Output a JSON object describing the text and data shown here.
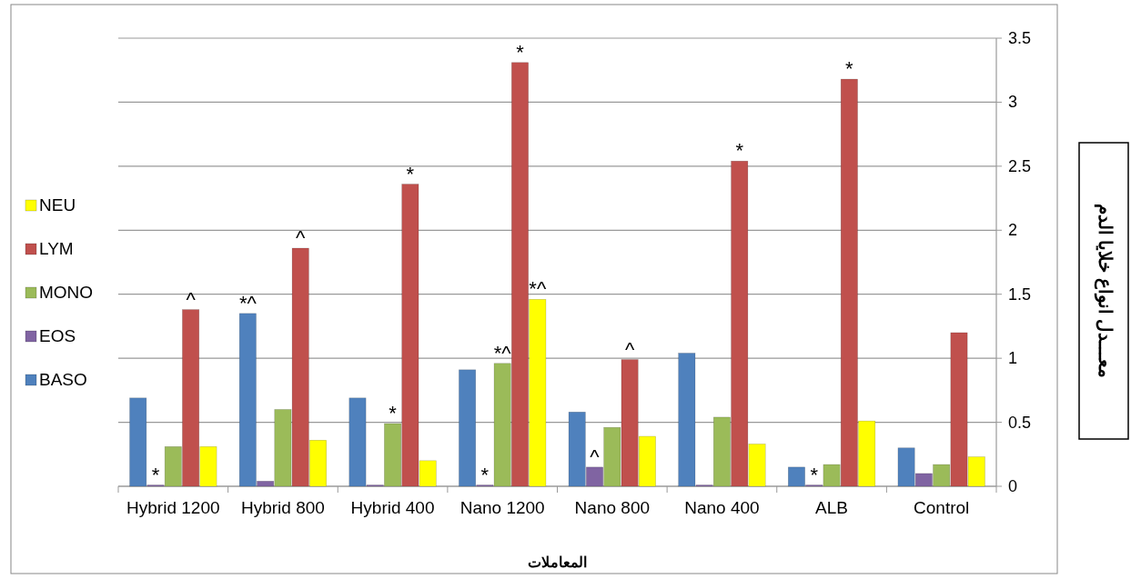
{
  "chart_data": {
    "type": "bar",
    "xlabel": "المعاملات",
    "ylabel": "معـــدل انواع خلايا الدم",
    "categories": [
      "Hybrid 1200",
      "Hybrid 800",
      "Hybrid 400",
      "Nano 1200",
      "Nano 800",
      "Nano 400",
      "ALB",
      "Control"
    ],
    "series": [
      {
        "name": "BASO",
        "color": "#4f81bd",
        "values": [
          0.69,
          1.35,
          0.69,
          0.91,
          0.58,
          1.04,
          0.15,
          0.3
        ],
        "value_labels": [
          null,
          "*^",
          null,
          null,
          null,
          null,
          null,
          null
        ]
      },
      {
        "name": "EOS",
        "color": "#8064a2",
        "values": [
          0.01,
          0.04,
          0.01,
          0.01,
          0.15,
          0.01,
          0.01,
          0.1
        ],
        "value_labels": [
          "*",
          null,
          null,
          "*",
          "^",
          null,
          "*",
          null
        ]
      },
      {
        "name": "MONO",
        "color": "#9bbb59",
        "values": [
          0.31,
          0.6,
          0.49,
          0.96,
          0.46,
          0.54,
          0.17,
          0.17
        ],
        "value_labels": [
          null,
          null,
          "*",
          "*^",
          null,
          null,
          null,
          null
        ]
      },
      {
        "name": "LYM",
        "color": "#c0504d",
        "values": [
          1.38,
          1.86,
          2.36,
          3.31,
          0.99,
          2.54,
          3.18,
          1.2
        ],
        "value_labels": [
          "^",
          "^",
          "*",
          "*",
          "^",
          "*",
          "*",
          null
        ]
      },
      {
        "name": "NEU",
        "color": "#ffff00",
        "values": [
          0.31,
          0.36,
          0.2,
          1.46,
          0.39,
          0.33,
          0.51,
          0.23
        ],
        "value_labels": [
          null,
          null,
          null,
          "*^",
          null,
          null,
          null,
          null
        ]
      }
    ],
    "ylim": [
      0,
      3.5
    ],
    "yticks": [
      0,
      0.5,
      1,
      1.5,
      2,
      2.5,
      3,
      3.5
    ],
    "grid": "y",
    "legend": "left"
  }
}
